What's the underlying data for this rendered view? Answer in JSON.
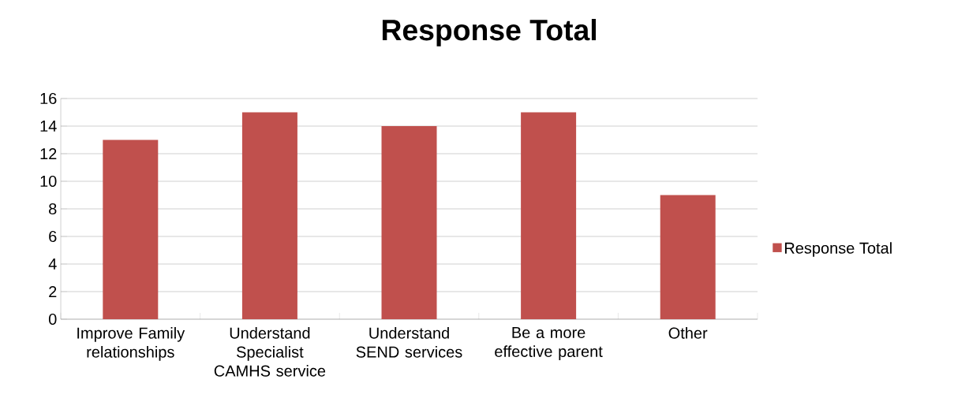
{
  "chart_data": {
    "type": "bar",
    "title": "Response Total",
    "categories": [
      "Improve Family relationships",
      "Understand Specialist CAMHS service",
      "Understand SEND services",
      "Be a more effective parent",
      "Other"
    ],
    "series": [
      {
        "name": "Response Total",
        "color": "#c0504d",
        "values": [
          13,
          15,
          14,
          15,
          9
        ]
      }
    ],
    "ylim": [
      0,
      16
    ],
    "yticks": [
      0,
      2,
      4,
      6,
      8,
      10,
      12,
      14,
      16
    ],
    "grid": "y",
    "legend": "right"
  }
}
